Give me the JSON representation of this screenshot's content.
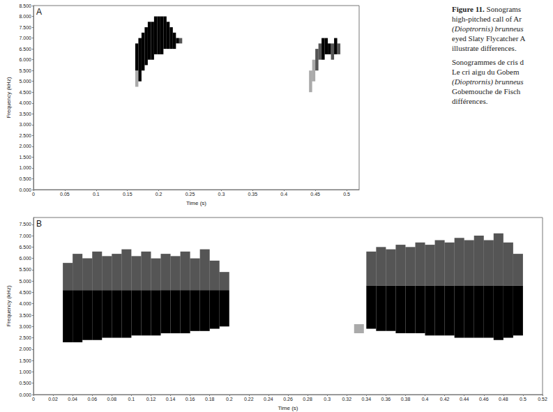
{
  "caption": {
    "english": [
      "Figure 11. Sonograms",
      "high-pitched call of Ar",
      "(Dioptrornis) brunneus",
      "eyed Slaty Flycatcher A",
      "illustrate differences."
    ],
    "french": [
      "Sonogrammes de cris d",
      "Le cri aigu du Gobem",
      "(Dioptrornis) brunneus",
      "Gobemouche de Fisch",
      "différences."
    ]
  },
  "chart_data": [
    {
      "type": "heatmap",
      "panel": "A",
      "x_label": "Time (s)",
      "y_label": "Frequency (kHz)",
      "color": "#000000",
      "grid": false,
      "xlim": [
        0,
        0.52
      ],
      "ylim": [
        0,
        8.5
      ],
      "xticks": [
        0,
        0.05,
        0.1,
        0.15,
        0.2,
        0.25,
        0.3,
        0.35,
        0.4,
        0.45,
        0.5
      ],
      "yticks": [
        {
          "value": 0,
          "label": "0.000"
        },
        {
          "value": 0.5,
          "label": "0.500"
        },
        {
          "value": 1,
          "label": "1.000"
        },
        {
          "value": 1.5,
          "label": "1.500"
        },
        {
          "value": 2,
          "label": "2.000"
        },
        {
          "value": 2.5,
          "label": "2.500"
        },
        {
          "value": 3,
          "label": "3.000"
        },
        {
          "value": 3.5,
          "label": "3.500"
        },
        {
          "value": 4,
          "label": "4.000"
        },
        {
          "value": 4.5,
          "label": "4.500"
        },
        {
          "value": 5,
          "label": "5.000"
        },
        {
          "value": 5.5,
          "label": "5.500"
        },
        {
          "value": 6,
          "label": "6.000"
        },
        {
          "value": 6.5,
          "label": "6.500"
        },
        {
          "value": 7,
          "label": "7.000"
        },
        {
          "value": 7.5,
          "label": "7.500"
        },
        {
          "value": 8,
          "label": "8.000"
        },
        {
          "value": 8.5,
          "label": "8.500"
        }
      ],
      "column_width": 0.005,
      "columns": [
        [
          0.165,
          4.75,
          5.5,
          1
        ],
        [
          0.165,
          5.5,
          6.75,
          3
        ],
        [
          0.17,
          5.0,
          7.0,
          3
        ],
        [
          0.175,
          5.5,
          7.25,
          3
        ],
        [
          0.18,
          5.75,
          7.5,
          3
        ],
        [
          0.185,
          6.0,
          7.75,
          3
        ],
        [
          0.19,
          6.0,
          7.75,
          3
        ],
        [
          0.195,
          6.25,
          8.0,
          3
        ],
        [
          0.2,
          6.25,
          8.0,
          3
        ],
        [
          0.205,
          6.25,
          8.0,
          3
        ],
        [
          0.21,
          6.5,
          8.0,
          3
        ],
        [
          0.215,
          6.5,
          7.75,
          3
        ],
        [
          0.22,
          6.5,
          7.5,
          3
        ],
        [
          0.225,
          6.5,
          7.25,
          3
        ],
        [
          0.23,
          6.75,
          7.0,
          3
        ],
        [
          0.235,
          6.75,
          7.0,
          2
        ],
        [
          0.4425,
          4.5,
          5.5,
          1
        ],
        [
          0.4475,
          5.0,
          6.0,
          1
        ],
        [
          0.4525,
          5.5,
          6.5,
          2
        ],
        [
          0.4575,
          6.0,
          6.75,
          2
        ],
        [
          0.4625,
          6.0,
          7.0,
          3
        ],
        [
          0.4675,
          6.25,
          7.0,
          3
        ],
        [
          0.4725,
          6.25,
          6.75,
          3
        ],
        [
          0.4775,
          6.0,
          6.75,
          2
        ],
        [
          0.4825,
          6.25,
          7.0,
          3
        ],
        [
          0.4875,
          6.25,
          6.75,
          2
        ]
      ]
    },
    {
      "type": "heatmap",
      "panel": "B",
      "x_label": "Time (s)",
      "y_label": "Frequency (kHz)",
      "color": "#000000",
      "grid": false,
      "xlim": [
        0,
        0.52
      ],
      "ylim": [
        0,
        7.8
      ],
      "xticks": [
        0,
        0.02,
        0.04,
        0.06,
        0.08,
        0.1,
        0.12,
        0.14,
        0.16,
        0.18,
        0.2,
        0.22,
        0.24,
        0.26,
        0.28,
        0.3,
        0.32,
        0.34,
        0.36,
        0.38,
        0.4,
        0.42,
        0.44,
        0.46,
        0.48,
        0.5,
        0.52
      ],
      "yticks": [
        {
          "value": 0,
          "label": "0.000"
        },
        {
          "value": 0.5,
          "label": "0.500"
        },
        {
          "value": 1,
          "label": "1.000"
        },
        {
          "value": 1.5,
          "label": "1.500"
        },
        {
          "value": 2,
          "label": "2.000"
        },
        {
          "value": 2.5,
          "label": "2.500"
        },
        {
          "value": 3,
          "label": "3.000"
        },
        {
          "value": 3.5,
          "label": "3.500"
        },
        {
          "value": 4,
          "label": "4.000"
        },
        {
          "value": 4.5,
          "label": "4.500"
        },
        {
          "value": 5,
          "label": "5.000"
        },
        {
          "value": 5.5,
          "label": "5.500"
        },
        {
          "value": 6,
          "label": "6.000"
        },
        {
          "value": 6.5,
          "label": "6.500"
        },
        {
          "value": 7,
          "label": "7.000"
        },
        {
          "value": 7.5,
          "label": "7.500"
        }
      ],
      "column_width": 0.01,
      "columns": [
        [
          0.035,
          2.3,
          4.6,
          3
        ],
        [
          0.035,
          4.6,
          5.8,
          2
        ],
        [
          0.045,
          2.3,
          4.6,
          3
        ],
        [
          0.045,
          4.6,
          6.2,
          2
        ],
        [
          0.055,
          2.4,
          4.6,
          3
        ],
        [
          0.055,
          4.6,
          6.0,
          2
        ],
        [
          0.065,
          2.4,
          4.6,
          3
        ],
        [
          0.065,
          4.6,
          6.3,
          2
        ],
        [
          0.075,
          2.5,
          4.6,
          3
        ],
        [
          0.075,
          4.6,
          6.1,
          2
        ],
        [
          0.085,
          2.5,
          4.6,
          3
        ],
        [
          0.085,
          4.6,
          6.2,
          2
        ],
        [
          0.095,
          2.5,
          4.6,
          3
        ],
        [
          0.095,
          4.6,
          6.4,
          2
        ],
        [
          0.105,
          2.6,
          4.6,
          3
        ],
        [
          0.105,
          4.6,
          6.1,
          2
        ],
        [
          0.115,
          2.6,
          4.6,
          3
        ],
        [
          0.115,
          4.6,
          6.3,
          2
        ],
        [
          0.125,
          2.6,
          4.6,
          3
        ],
        [
          0.125,
          4.6,
          6.0,
          2
        ],
        [
          0.135,
          2.7,
          4.6,
          3
        ],
        [
          0.135,
          4.6,
          6.2,
          2
        ],
        [
          0.145,
          2.7,
          4.6,
          3
        ],
        [
          0.145,
          4.6,
          6.1,
          2
        ],
        [
          0.155,
          2.7,
          4.6,
          3
        ],
        [
          0.155,
          4.6,
          6.3,
          2
        ],
        [
          0.165,
          2.8,
          4.6,
          3
        ],
        [
          0.165,
          4.6,
          6.0,
          2
        ],
        [
          0.175,
          2.8,
          4.6,
          3
        ],
        [
          0.175,
          4.6,
          6.4,
          2
        ],
        [
          0.185,
          2.9,
          4.6,
          3
        ],
        [
          0.185,
          4.6,
          5.9,
          2
        ],
        [
          0.195,
          3.0,
          4.6,
          3
        ],
        [
          0.195,
          4.6,
          5.4,
          2
        ],
        [
          0.3325,
          2.7,
          3.1,
          1
        ],
        [
          0.345,
          2.9,
          4.8,
          3
        ],
        [
          0.345,
          4.8,
          6.3,
          2
        ],
        [
          0.355,
          2.8,
          4.8,
          3
        ],
        [
          0.355,
          4.8,
          6.5,
          2
        ],
        [
          0.365,
          2.8,
          4.8,
          3
        ],
        [
          0.365,
          4.8,
          6.4,
          2
        ],
        [
          0.375,
          2.7,
          4.8,
          3
        ],
        [
          0.375,
          4.8,
          6.6,
          2
        ],
        [
          0.385,
          2.7,
          4.8,
          3
        ],
        [
          0.385,
          4.8,
          6.5,
          2
        ],
        [
          0.395,
          2.7,
          4.8,
          3
        ],
        [
          0.395,
          4.8,
          6.7,
          2
        ],
        [
          0.405,
          2.6,
          4.8,
          3
        ],
        [
          0.405,
          4.8,
          6.6,
          2
        ],
        [
          0.415,
          2.6,
          4.8,
          3
        ],
        [
          0.415,
          4.8,
          6.8,
          2
        ],
        [
          0.425,
          2.6,
          4.8,
          3
        ],
        [
          0.425,
          4.8,
          6.7,
          2
        ],
        [
          0.435,
          2.5,
          4.8,
          3
        ],
        [
          0.435,
          4.8,
          6.9,
          2
        ],
        [
          0.445,
          2.5,
          4.8,
          3
        ],
        [
          0.445,
          4.8,
          6.8,
          2
        ],
        [
          0.455,
          2.5,
          4.8,
          3
        ],
        [
          0.455,
          4.8,
          7.0,
          2
        ],
        [
          0.465,
          2.5,
          4.8,
          3
        ],
        [
          0.465,
          4.8,
          6.8,
          2
        ],
        [
          0.475,
          2.4,
          4.8,
          3
        ],
        [
          0.475,
          4.8,
          7.1,
          2
        ],
        [
          0.485,
          2.5,
          4.8,
          3
        ],
        [
          0.485,
          4.8,
          6.7,
          2
        ],
        [
          0.495,
          2.6,
          4.8,
          3
        ],
        [
          0.495,
          4.8,
          6.2,
          2
        ]
      ]
    }
  ]
}
